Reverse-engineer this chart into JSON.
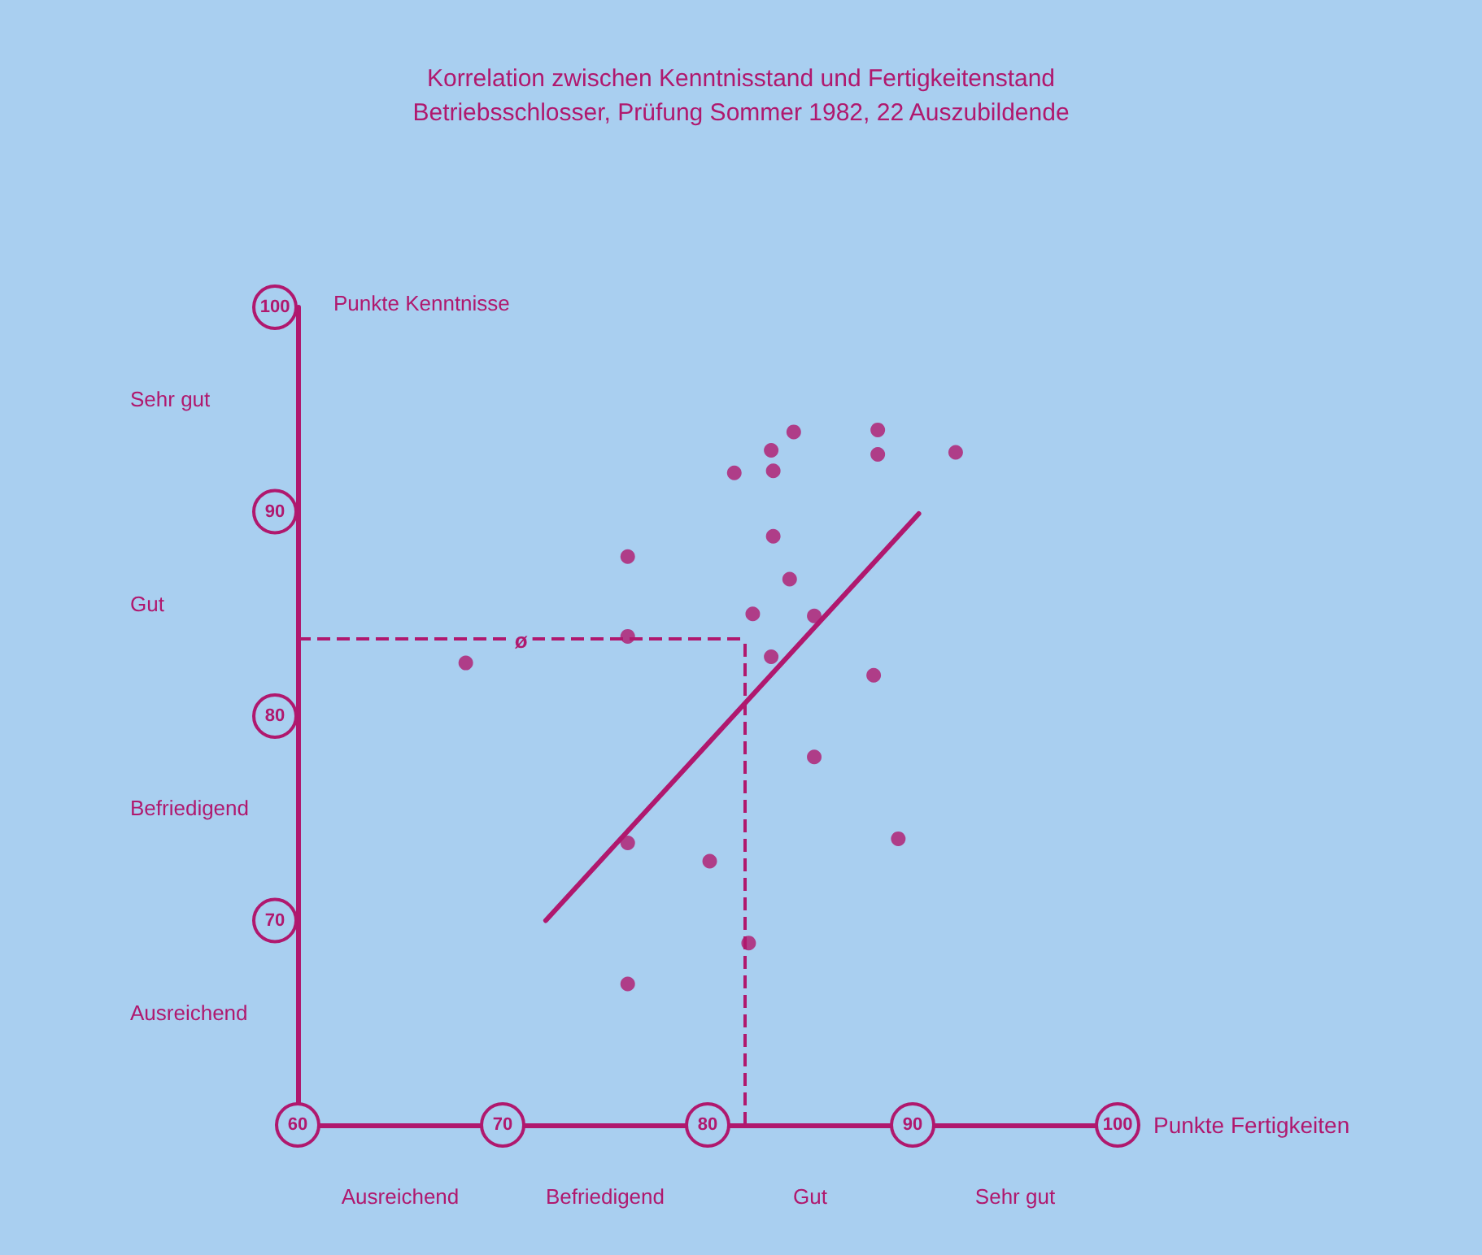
{
  "chart_data": {
    "type": "scatter",
    "title": "Korrelation zwischen Kenntnisstand und Fertigkeitenstand",
    "subtitle": "Betriebsschlosser, Prüfung Sommer 1982, 22 Auszubildende",
    "xlabel": "Punkte Fertigkeiten",
    "ylabel": "Punkte Kenntnisse",
    "xlim": [
      60,
      100
    ],
    "ylim": [
      60,
      100
    ],
    "xticks": [
      60,
      70,
      80,
      90,
      100
    ],
    "yticks": [
      {
        "value": 60,
        "label": null
      },
      70,
      80,
      90,
      100
    ],
    "grid": false,
    "marker": "circle",
    "series": [
      {
        "color": "#b0186e",
        "x": [
          68.2,
          76.1,
          76.1,
          76.1,
          76.1,
          80.1,
          81.3,
          82.0,
          82.2,
          83.1,
          83.1,
          83.2,
          83.2,
          84.0,
          84.2,
          85.2,
          85.2,
          88.1,
          88.3,
          88.3,
          89.3,
          92.1
        ],
        "values": [
          82.6,
          87.8,
          83.9,
          73.8,
          66.9,
          72.9,
          91.9,
          68.9,
          85.0,
          82.9,
          93.0,
          92.0,
          88.8,
          86.7,
          93.9,
          84.9,
          78.0,
          82.0,
          94.0,
          92.8,
          74.0,
          92.9
        ]
      },
      {
        "type": "line",
        "color": "#b0186e",
        "marker": "none",
        "line_style": "solid",
        "x": [
          72.1,
          90.3
        ],
        "values": [
          70.0,
          89.9
        ]
      }
    ],
    "ref_lines": [
      {
        "axis": "y",
        "value": 83.8,
        "label": "ø",
        "color": "#b0186e",
        "line_style": "dashed"
      },
      {
        "axis": "x",
        "value": 81.8,
        "color": "#b0186e",
        "line_style": "dashed"
      }
    ],
    "annotations": [
      "Sehr gut",
      "Gut",
      "Befriedigend",
      "Ausreichend",
      "Ausreichend",
      "Befriedigend",
      "Gut",
      "Sehr gut"
    ]
  }
}
